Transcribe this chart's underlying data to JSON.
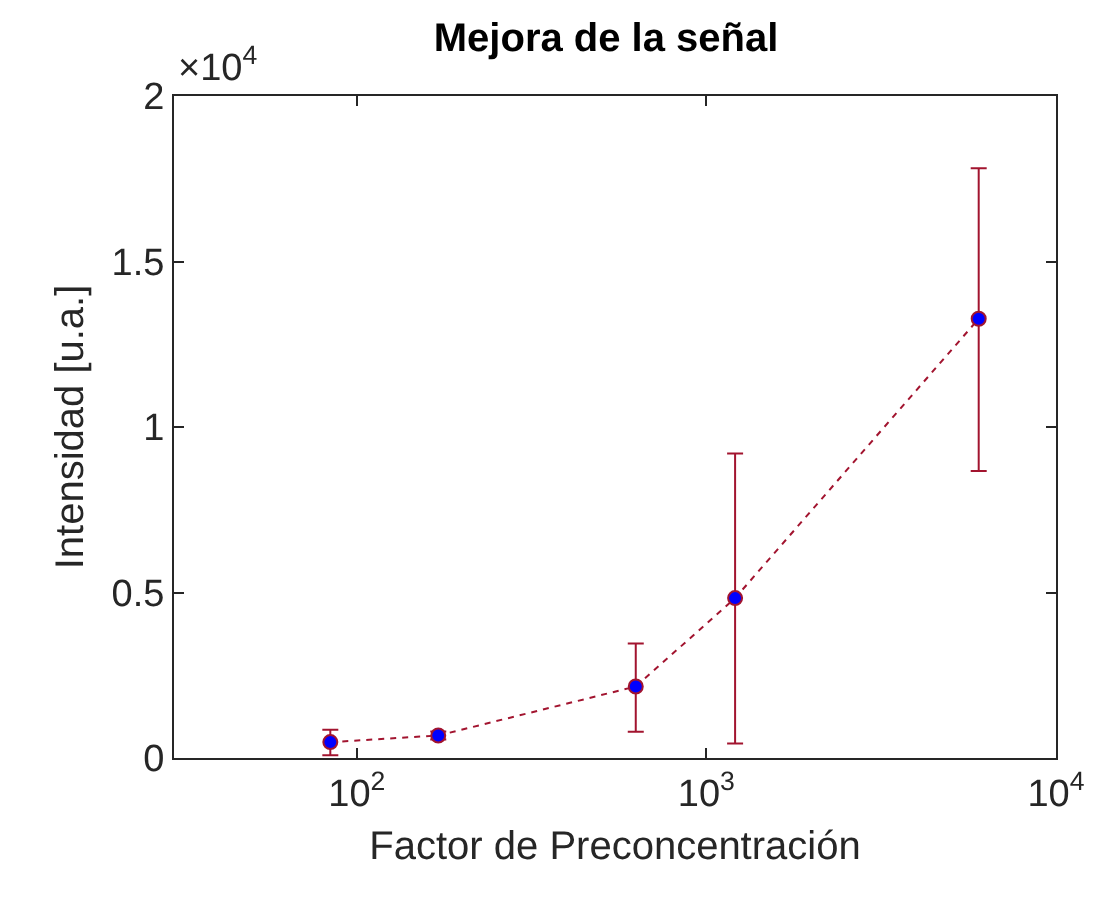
{
  "chart_data": {
    "type": "line",
    "title": "Mejora de la señal",
    "xlabel": "Factor de Preconcentración",
    "ylabel": "Intensidad [u.a.]",
    "annotations": [
      "×10$^{4}$"
    ],
    "x": [
      84,
      171,
      628,
      1208,
      6010
    ],
    "series": [
      {
        "color": "#a2142f",
        "colors": [
          "#0000ff",
          "#0000ff",
          "#0000ff",
          "#0000ff",
          "#0000ff"
        ],
        "values": [
          0.048,
          0.068,
          0.216,
          0.483,
          1.327
        ],
        "errors": [
          [
            0.008,
            0.085
          ],
          [
            0.056,
            0.08
          ],
          [
            0.079,
            0.346
          ],
          [
            0.044,
            0.92
          ],
          [
            0.867,
            1.782
          ]
        ]
      }
    ],
    "log": "x",
    "xlim": [
      30,
      10000
    ],
    "xticks": [
      {
        "value": 100,
        "label": "10$^{2}$"
      },
      {
        "value": 1000,
        "label": "10$^{3}$"
      },
      {
        "value": 10000,
        "label": "10$^{4}$"
      }
    ],
    "ylim": [
      0,
      2
    ],
    "yticks": [
      0,
      0.5,
      1,
      1.5,
      2
    ],
    "grid": false,
    "marker": "circle",
    "line_style": "dotted"
  }
}
